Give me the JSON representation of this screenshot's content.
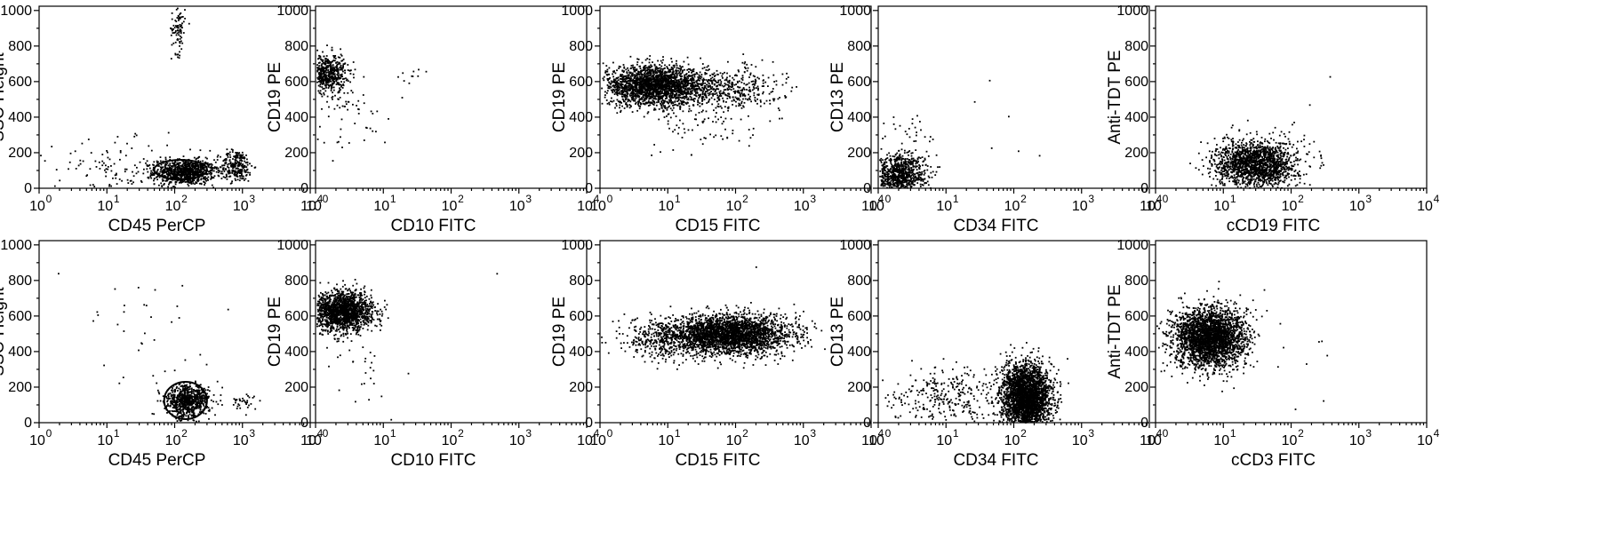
{
  "chart_data": [
    {
      "type": "scatter",
      "xlabel": "CD45 PerCP",
      "ylabel": "SSC-Height",
      "xscale": "log",
      "xlim": [
        1,
        10000
      ],
      "ylim": [
        0,
        1024
      ],
      "xticks": [
        "10",
        "10",
        "10",
        "10",
        "10"
      ],
      "xtick_exp": [
        "0",
        "1",
        "2",
        "3",
        "4"
      ],
      "yticks": [
        "0",
        "200",
        "400",
        "600",
        "800",
        "1000"
      ],
      "clusters": [
        {
          "x": 140,
          "y": 95,
          "sx": 0.22,
          "sy": 35,
          "n": 900
        },
        {
          "x": 800,
          "y": 130,
          "sx": 0.12,
          "sy": 45,
          "n": 260
        },
        {
          "x": 110,
          "y": 900,
          "sx": 0.05,
          "sy": 70,
          "n": 90
        },
        {
          "x": 20,
          "y": 110,
          "sx": 0.55,
          "sy": 80,
          "n": 150
        }
      ],
      "gate": {
        "x": [
          50,
          300
        ],
        "y": [
          50,
          160
        ]
      }
    },
    {
      "type": "scatter",
      "xlabel": "CD10 FITC",
      "ylabel": "CD19 PE",
      "xscale": "log",
      "xlim": [
        1,
        10000
      ],
      "ylim": [
        0,
        1024
      ],
      "xticks": [
        "10",
        "10",
        "10",
        "10",
        "10"
      ],
      "xtick_exp": [
        "0",
        "1",
        "2",
        "3",
        "4"
      ],
      "yticks": [
        "0",
        "200",
        "400",
        "600",
        "800",
        "1000"
      ],
      "clusters": [
        {
          "x": 1.4,
          "y": 650,
          "sx": 0.14,
          "sy": 55,
          "n": 600
        },
        {
          "x": 3,
          "y": 480,
          "sx": 0.3,
          "sy": 130,
          "n": 70
        },
        {
          "x": 25,
          "y": 620,
          "sx": 0.2,
          "sy": 40,
          "n": 10
        }
      ]
    },
    {
      "type": "scatter",
      "xlabel": "CD15 FITC",
      "ylabel": "CD19 PE",
      "xscale": "log",
      "xlim": [
        1,
        10000
      ],
      "ylim": [
        0,
        1024
      ],
      "xticks": [
        "10",
        "10",
        "10",
        "10",
        "10"
      ],
      "xtick_exp": [
        "0",
        "1",
        "2",
        "3",
        "4"
      ],
      "yticks": [
        "0",
        "200",
        "400",
        "600",
        "800",
        "1000"
      ],
      "clusters": [
        {
          "x": 6,
          "y": 580,
          "sx": 0.38,
          "sy": 55,
          "n": 2200
        },
        {
          "x": 60,
          "y": 560,
          "sx": 0.45,
          "sy": 60,
          "n": 500
        },
        {
          "x": 40,
          "y": 350,
          "sx": 0.35,
          "sy": 80,
          "n": 60
        }
      ]
    },
    {
      "type": "scatter",
      "xlabel": "CD34 FITC",
      "ylabel": "CD13 PE",
      "xscale": "log",
      "xlim": [
        1,
        10000
      ],
      "ylim": [
        0,
        1024
      ],
      "xticks": [
        "10",
        "10",
        "10",
        "10",
        "10"
      ],
      "xtick_exp": [
        "0",
        "1",
        "2",
        "3",
        "4"
      ],
      "yticks": [
        "0",
        "200",
        "400",
        "600",
        "800",
        "1000"
      ],
      "clusters": [
        {
          "x": 2,
          "y": 80,
          "sx": 0.2,
          "sy": 60,
          "n": 900
        },
        {
          "x": 3,
          "y": 300,
          "sx": 0.2,
          "sy": 60,
          "n": 30
        },
        {
          "x": 80,
          "y": 400,
          "sx": 0.3,
          "sy": 180,
          "n": 6
        }
      ]
    },
    {
      "type": "scatter",
      "xlabel": "cCD19 FITC",
      "ylabel": "Anti-TDT PE",
      "xscale": "log",
      "xlim": [
        1,
        10000
      ],
      "ylim": [
        0,
        1024
      ],
      "xticks": [
        "10",
        "10",
        "10",
        "10",
        "10"
      ],
      "xtick_exp": [
        "0",
        "1",
        "2",
        "3",
        "4"
      ],
      "yticks": [
        "0",
        "200",
        "400",
        "600",
        "800",
        "1000"
      ],
      "clusters": [
        {
          "x": 30,
          "y": 140,
          "sx": 0.3,
          "sy": 65,
          "n": 1700
        },
        {
          "x": 200,
          "y": 280,
          "sx": 0.3,
          "sy": 150,
          "n": 8
        }
      ]
    },
    {
      "type": "scatter",
      "xlabel": "CD45 PerCP",
      "ylabel": "SSC-Height",
      "xscale": "log",
      "xlim": [
        1,
        10000
      ],
      "ylim": [
        0,
        1024
      ],
      "xticks": [
        "10",
        "10",
        "10",
        "10",
        "10"
      ],
      "xtick_exp": [
        "0",
        "1",
        "2",
        "3",
        "4"
      ],
      "yticks": [
        "0",
        "200",
        "400",
        "600",
        "800",
        "1000"
      ],
      "clusters": [
        {
          "x": 150,
          "y": 125,
          "sx": 0.16,
          "sy": 45,
          "n": 750
        },
        {
          "x": 1000,
          "y": 110,
          "sx": 0.12,
          "sy": 25,
          "n": 35
        },
        {
          "x": 30,
          "y": 500,
          "sx": 0.6,
          "sy": 280,
          "n": 40
        }
      ],
      "gate": {
        "x": [
          70,
          300
        ],
        "y": [
          20,
          230
        ]
      }
    },
    {
      "type": "scatter",
      "xlabel": "CD10 FITC",
      "ylabel": "CD19 PE",
      "xscale": "log",
      "xlim": [
        1,
        10000
      ],
      "ylim": [
        0,
        1024
      ],
      "xticks": [
        "10",
        "10",
        "10",
        "10",
        "10"
      ],
      "xtick_exp": [
        "0",
        "1",
        "2",
        "3",
        "4"
      ],
      "yticks": [
        "0",
        "200",
        "400",
        "600",
        "800",
        "1000"
      ],
      "clusters": [
        {
          "x": 2.5,
          "y": 630,
          "sx": 0.22,
          "sy": 55,
          "n": 1700
        },
        {
          "x": 5,
          "y": 300,
          "sx": 0.3,
          "sy": 100,
          "n": 25
        },
        {
          "x": 500,
          "y": 840,
          "sx": 0.02,
          "sy": 5,
          "n": 1
        }
      ]
    },
    {
      "type": "scatter",
      "xlabel": "CD15 FITC",
      "ylabel": "CD19 PE",
      "xscale": "log",
      "xlim": [
        1,
        10000
      ],
      "ylim": [
        0,
        1024
      ],
      "xticks": [
        "10",
        "10",
        "10",
        "10",
        "10"
      ],
      "xtick_exp": [
        "0",
        "1",
        "2",
        "3",
        "4"
      ],
      "yticks": [
        "0",
        "200",
        "400",
        "600",
        "800",
        "1000"
      ],
      "clusters": [
        {
          "x": 80,
          "y": 500,
          "sx": 0.45,
          "sy": 55,
          "n": 2800
        },
        {
          "x": 10,
          "y": 470,
          "sx": 0.4,
          "sy": 60,
          "n": 400
        },
        {
          "x": 200,
          "y": 880,
          "sx": 0.02,
          "sy": 5,
          "n": 1
        }
      ]
    },
    {
      "type": "scatter",
      "xlabel": "CD34 FITC",
      "ylabel": "CD13 PE",
      "xscale": "log",
      "xlim": [
        1,
        10000
      ],
      "ylim": [
        0,
        1024
      ],
      "xticks": [
        "10",
        "10",
        "10",
        "10",
        "10"
      ],
      "xtick_exp": [
        "0",
        "1",
        "2",
        "3",
        "4"
      ],
      "yticks": [
        "0",
        "200",
        "400",
        "600",
        "800",
        "1000"
      ],
      "clusters": [
        {
          "x": 150,
          "y": 150,
          "sx": 0.18,
          "sy": 90,
          "n": 2800
        },
        {
          "x": 10,
          "y": 150,
          "sx": 0.45,
          "sy": 80,
          "n": 320
        }
      ]
    },
    {
      "type": "scatter",
      "xlabel": "cCD3 FITC",
      "ylabel": "Anti-TDT PE",
      "xscale": "log",
      "xlim": [
        1,
        10000
      ],
      "ylim": [
        0,
        1024
      ],
      "xticks": [
        "10",
        "10",
        "10",
        "10",
        "10"
      ],
      "xtick_exp": [
        "0",
        "1",
        "2",
        "3",
        "4"
      ],
      "yticks": [
        "0",
        "200",
        "400",
        "600",
        "800",
        "1000"
      ],
      "clusters": [
        {
          "x": 6,
          "y": 480,
          "sx": 0.26,
          "sy": 85,
          "n": 2800
        },
        {
          "x": 150,
          "y": 300,
          "sx": 0.3,
          "sy": 150,
          "n": 8
        }
      ]
    }
  ]
}
